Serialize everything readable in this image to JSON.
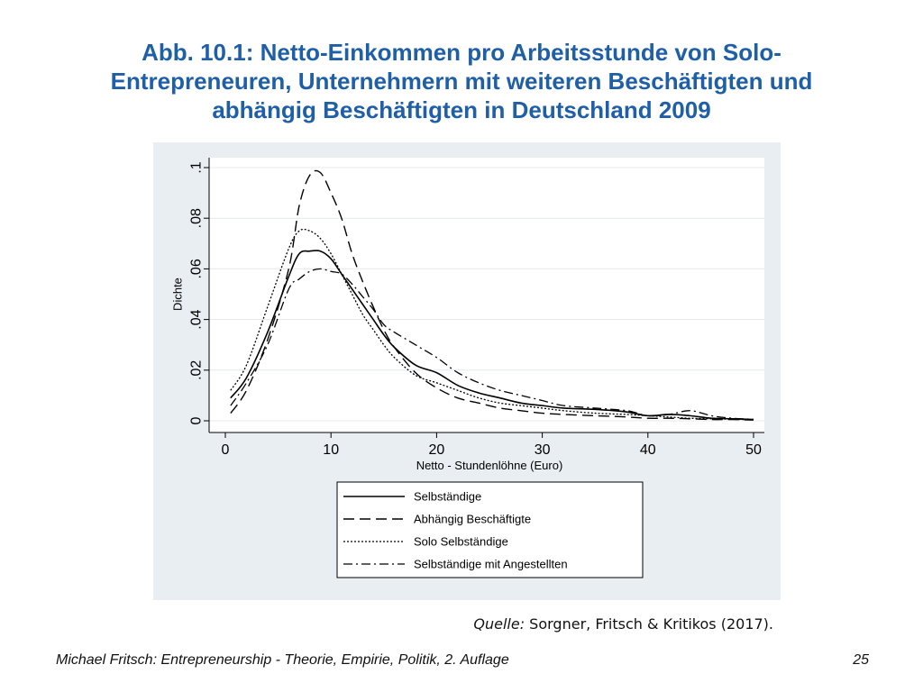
{
  "slide": {
    "title_lines": [
      "Abb. 10.1: Netto-Einkommen pro Arbeitsstunde von Solo-",
      "Entrepreneuren, Unternehmern mit weiteren Beschäftigten und",
      "abhängig Beschäftigten in Deutschland 2009"
    ],
    "source_label": "Quelle:",
    "source_text": " Sorgner, Fritsch & Kritikos (2017).",
    "footer_left": "Michael Fritsch: Entrepreneurship - Theorie, Empirie, Politik, 2. Auflage",
    "page_number": "25"
  },
  "colors": {
    "title": "#1f5fa8",
    "plot_background": "#ffffff",
    "frame_background": "#e9eef2",
    "lines": "#000000"
  },
  "chart_data": {
    "type": "line",
    "xlabel": "Netto - Stundenlöhne (Euro)",
    "ylabel": "Dichte",
    "xlim": [
      0,
      50
    ],
    "ylim": [
      0,
      0.1
    ],
    "x_ticks": [
      0,
      10,
      20,
      30,
      40,
      50
    ],
    "x_tick_labels": [
      "0",
      "10",
      "20",
      "30",
      "40",
      "50"
    ],
    "y_ticks": [
      0,
      0.02,
      0.04,
      0.06,
      0.08,
      0.1
    ],
    "y_tick_labels": [
      "0",
      ".02",
      ".04",
      ".06",
      ".08",
      ".1"
    ],
    "grid": "horizontal",
    "legend_position": "bottom",
    "x": [
      0.5,
      2,
      4,
      6,
      7,
      8,
      9,
      10,
      11,
      12,
      13,
      14,
      15,
      16,
      18,
      20,
      22,
      24,
      26,
      28,
      30,
      32,
      35,
      38,
      40,
      42,
      44,
      46,
      48,
      50
    ],
    "series": [
      {
        "name": "Selbständige",
        "style": "solid",
        "values": [
          0.009,
          0.017,
          0.035,
          0.057,
          0.066,
          0.067,
          0.067,
          0.064,
          0.058,
          0.052,
          0.046,
          0.04,
          0.034,
          0.029,
          0.022,
          0.019,
          0.014,
          0.011,
          0.009,
          0.007,
          0.006,
          0.005,
          0.0045,
          0.0035,
          0.002,
          0.0025,
          0.002,
          0.001,
          0.0008,
          0.0005
        ]
      },
      {
        "name": "Abhängig Beschäftigte",
        "style": "dashed",
        "values": [
          0.003,
          0.012,
          0.032,
          0.06,
          0.085,
          0.097,
          0.098,
          0.09,
          0.08,
          0.066,
          0.055,
          0.045,
          0.036,
          0.029,
          0.019,
          0.013,
          0.009,
          0.007,
          0.005,
          0.004,
          0.003,
          0.0025,
          0.002,
          0.0015,
          0.001,
          0.001,
          0.0008,
          0.0005,
          0.0005,
          0.0003
        ]
      },
      {
        "name": "Solo Selbständige",
        "style": "dotted",
        "values": [
          0.012,
          0.022,
          0.045,
          0.068,
          0.075,
          0.075,
          0.072,
          0.066,
          0.058,
          0.05,
          0.042,
          0.036,
          0.03,
          0.025,
          0.018,
          0.015,
          0.012,
          0.009,
          0.007,
          0.006,
          0.005,
          0.004,
          0.003,
          0.0025,
          0.002,
          0.0015,
          0.001,
          0.0008,
          0.0006,
          0.0004
        ]
      },
      {
        "name": "Selbständige mit Angestellten",
        "style": "dashdot",
        "values": [
          0.006,
          0.015,
          0.03,
          0.052,
          0.056,
          0.059,
          0.06,
          0.059,
          0.058,
          0.054,
          0.049,
          0.044,
          0.038,
          0.035,
          0.03,
          0.025,
          0.019,
          0.015,
          0.012,
          0.01,
          0.008,
          0.006,
          0.005,
          0.004,
          0.002,
          0.0025,
          0.004,
          0.002,
          0.001,
          0.0006
        ]
      }
    ]
  }
}
